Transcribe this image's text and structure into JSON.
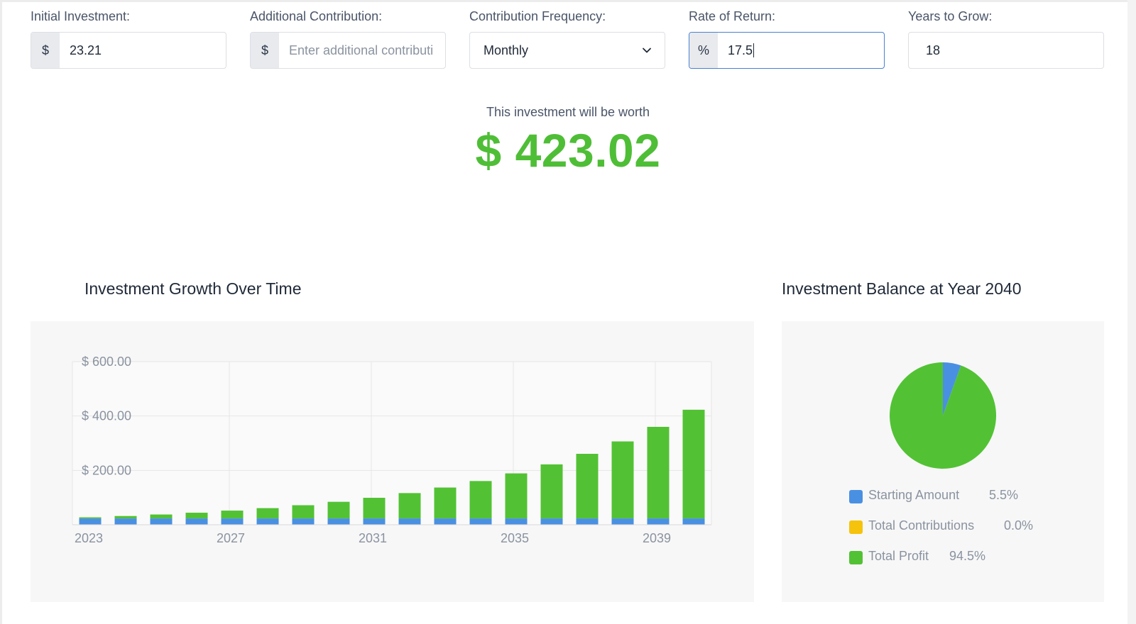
{
  "form": {
    "initial_investment": {
      "label": "Initial Investment:",
      "prefix": "$",
      "value": "23.21"
    },
    "additional_contribution": {
      "label": "Additional Contribution:",
      "prefix": "$",
      "value": "",
      "placeholder": "Enter additional contributi"
    },
    "contribution_frequency": {
      "label": "Contribution Frequency:",
      "value": "Monthly"
    },
    "rate_of_return": {
      "label": "Rate of Return:",
      "prefix": "%",
      "value": "17.5"
    },
    "years_to_grow": {
      "label": "Years to Grow:",
      "value": "18"
    }
  },
  "result": {
    "caption": "This investment will be worth",
    "currency": "$",
    "amount": "423.02",
    "color": "#4fbe37"
  },
  "growth_chart": {
    "title": "Investment Growth Over Time"
  },
  "balance_chart": {
    "title": "Investment Balance at Year 2040"
  },
  "colors": {
    "starting_amount": "#4a90e2",
    "total_contributions": "#f5c30b",
    "total_profit": "#52c234"
  },
  "chart_data": [
    {
      "type": "bar",
      "stacked": true,
      "categories": [
        "2023",
        "2024",
        "2025",
        "2026",
        "2027",
        "2028",
        "2029",
        "2030",
        "2031",
        "2032",
        "2033",
        "2034",
        "2035",
        "2036",
        "2037",
        "2038",
        "2039",
        "2040"
      ],
      "tick_labels": [
        "2023",
        "2027",
        "2031",
        "2035",
        "2039"
      ],
      "y_ticks": [
        "$ 200.00",
        "$ 400.00",
        "$ 600.00"
      ],
      "ylim": [
        0,
        600
      ],
      "grid": true,
      "series": [
        {
          "name": "Starting Amount",
          "color": "#4a90e2",
          "values": [
            23.21,
            23.21,
            23.21,
            23.21,
            23.21,
            23.21,
            23.21,
            23.21,
            23.21,
            23.21,
            23.21,
            23.21,
            23.21,
            23.21,
            23.21,
            23.21,
            23.21,
            23.21
          ]
        },
        {
          "name": "Total Contributions",
          "color": "#f5c30b",
          "values": [
            0,
            0,
            0,
            0,
            0,
            0,
            0,
            0,
            0,
            0,
            0,
            0,
            0,
            0,
            0,
            0,
            0,
            0
          ]
        },
        {
          "name": "Total Profit",
          "color": "#52c234",
          "values": [
            4.06,
            8.83,
            14.44,
            21.03,
            28.76,
            37.86,
            48.56,
            61.12,
            75.88,
            93.23,
            113.62,
            137.57,
            165.71,
            198.78,
            237.63,
            283.28,
            336.92,
            399.81
          ]
        }
      ]
    },
    {
      "type": "pie",
      "labels": [
        "Starting Amount",
        "Total Contributions",
        "Total Profit"
      ],
      "values": [
        5.5,
        0.0,
        94.5
      ],
      "display": [
        "5.5%",
        "0.0%",
        "94.5%"
      ],
      "colors": [
        "#4a90e2",
        "#f5c30b",
        "#52c234"
      ],
      "legend": "bottom"
    }
  ]
}
